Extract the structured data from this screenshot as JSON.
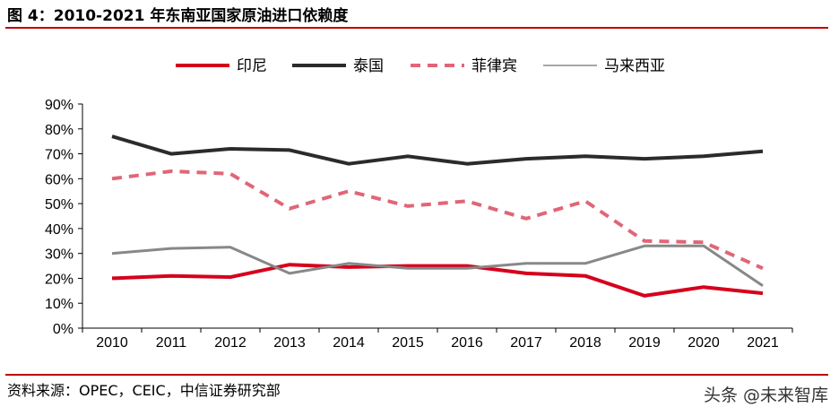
{
  "header": {
    "title": "图 4：2010-2021 年东南亚国家原油进口依赖度"
  },
  "footer": {
    "source": "资料来源：OPEC，CEIC，中信证券研究部",
    "watermark": "头条 @未来智库"
  },
  "chart_data": {
    "type": "line",
    "categories": [
      "2010",
      "2011",
      "2012",
      "2013",
      "2014",
      "2015",
      "2016",
      "2017",
      "2018",
      "2019",
      "2020",
      "2021"
    ],
    "ylim": [
      0,
      90
    ],
    "yticks": [
      "0%",
      "10%",
      "20%",
      "30%",
      "40%",
      "50%",
      "60%",
      "70%",
      "80%",
      "90%"
    ],
    "ytick_values": [
      0,
      10,
      20,
      30,
      40,
      50,
      60,
      70,
      80,
      90
    ],
    "grid": false,
    "legend_position": "top",
    "series": [
      {
        "name": "印尼",
        "color": "#d6001c",
        "style": "solid-thick",
        "values": [
          20,
          21,
          20.5,
          25.5,
          24.5,
          25,
          25,
          22,
          21,
          13,
          16.5,
          14
        ]
      },
      {
        "name": "泰国",
        "color": "#2b2b2b",
        "style": "solid-thick",
        "values": [
          77,
          70,
          72,
          71.5,
          66,
          69,
          66,
          68,
          69,
          68,
          69,
          71
        ]
      },
      {
        "name": "菲律宾",
        "color": "#e06677",
        "style": "dashed",
        "values": [
          60,
          63,
          62,
          48,
          55,
          49,
          51,
          44,
          51,
          35,
          34.5,
          24
        ]
      },
      {
        "name": "马来西亚",
        "color": "#888888",
        "style": "solid-medium",
        "values": [
          30,
          32,
          32.5,
          22,
          26,
          24,
          24,
          26,
          26,
          33,
          33,
          17
        ]
      }
    ]
  }
}
